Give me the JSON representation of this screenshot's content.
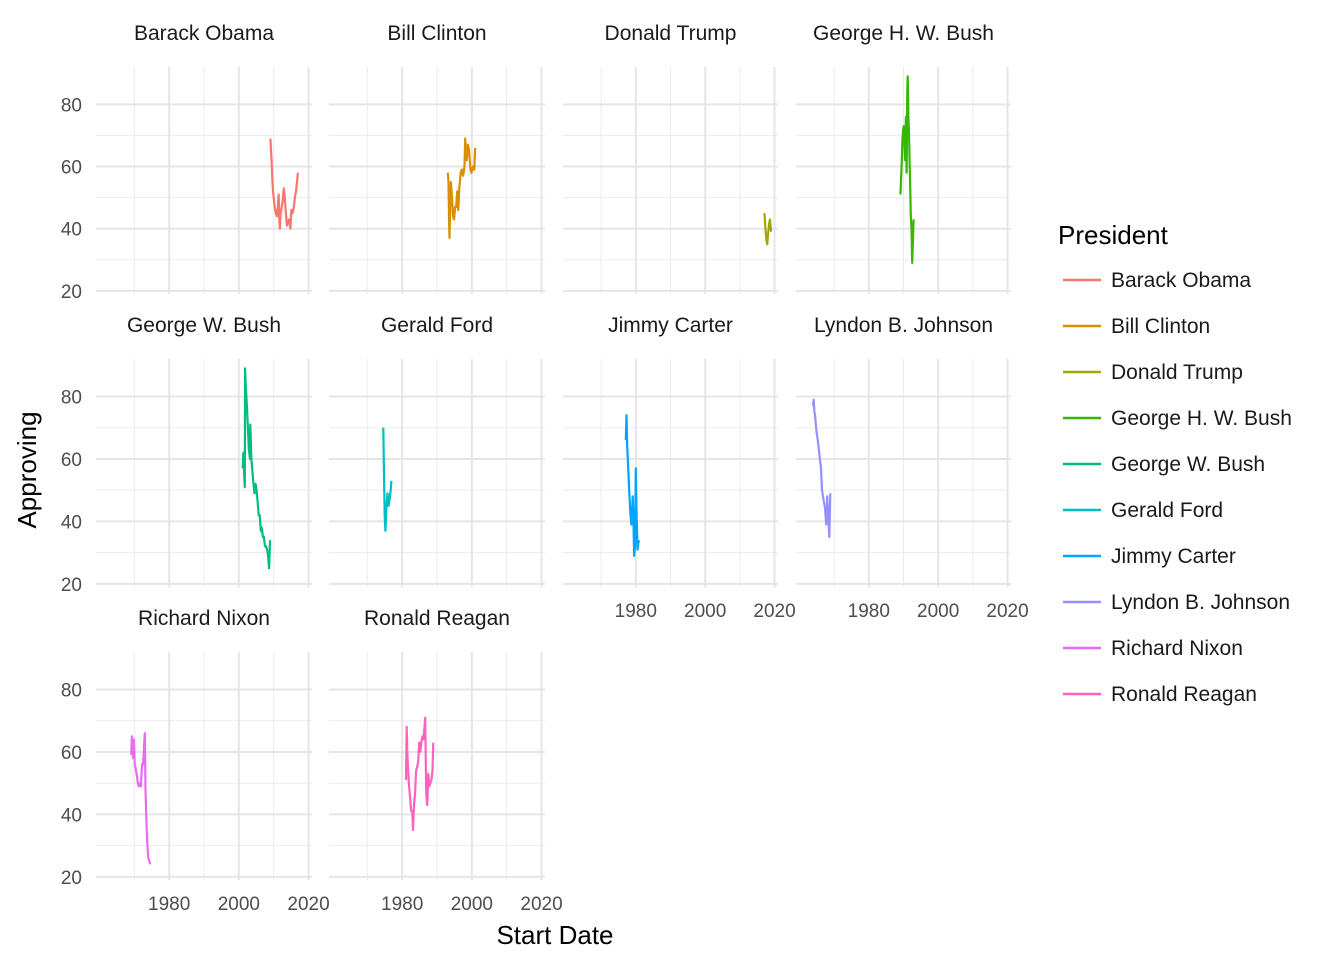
{
  "chart_data": {
    "type": "line",
    "facet": "wrap",
    "xlabel": "Start Date",
    "ylabel": "Approving",
    "xlim": [
      1959,
      2021
    ],
    "ylim": [
      19,
      92
    ],
    "x_ticks": [
      1980,
      2000,
      2020
    ],
    "y_ticks": [
      20,
      40,
      60,
      80
    ],
    "grid": true,
    "legend": {
      "title": "President",
      "position": "right"
    },
    "series": [
      {
        "name": "Barack Obama",
        "color": "#F8766D",
        "points": [
          [
            2009.05,
            69
          ],
          [
            2009.2,
            66
          ],
          [
            2009.4,
            62
          ],
          [
            2009.6,
            56
          ],
          [
            2009.8,
            52
          ],
          [
            2010.0,
            50
          ],
          [
            2010.3,
            47
          ],
          [
            2010.6,
            45
          ],
          [
            2010.9,
            44
          ],
          [
            2011.2,
            47
          ],
          [
            2011.4,
            51
          ],
          [
            2011.6,
            43
          ],
          [
            2011.8,
            40
          ],
          [
            2012.0,
            45
          ],
          [
            2012.3,
            47
          ],
          [
            2012.6,
            49
          ],
          [
            2012.9,
            53
          ],
          [
            2013.1,
            51
          ],
          [
            2013.5,
            45
          ],
          [
            2013.8,
            41
          ],
          [
            2014.1,
            42
          ],
          [
            2014.4,
            43
          ],
          [
            2014.8,
            40
          ],
          [
            2015.1,
            46
          ],
          [
            2015.4,
            45
          ],
          [
            2015.8,
            47
          ],
          [
            2016.1,
            50
          ],
          [
            2016.4,
            52
          ],
          [
            2016.7,
            55
          ],
          [
            2016.95,
            58
          ]
        ]
      },
      {
        "name": "Bill Clinton",
        "color": "#D89000",
        "points": [
          [
            1993.1,
            58
          ],
          [
            1993.3,
            55
          ],
          [
            1993.45,
            44
          ],
          [
            1993.6,
            37
          ],
          [
            1993.8,
            48
          ],
          [
            1994.0,
            55
          ],
          [
            1994.3,
            50
          ],
          [
            1994.6,
            44
          ],
          [
            1994.9,
            43
          ],
          [
            1995.2,
            47
          ],
          [
            1995.5,
            47
          ],
          [
            1995.8,
            52
          ],
          [
            1996.1,
            46
          ],
          [
            1996.4,
            53
          ],
          [
            1996.8,
            58
          ],
          [
            1997.1,
            59
          ],
          [
            1997.5,
            57
          ],
          [
            1997.9,
            60
          ],
          [
            1998.1,
            69
          ],
          [
            1998.5,
            62
          ],
          [
            1998.9,
            67
          ],
          [
            1999.2,
            65
          ],
          [
            1999.6,
            59
          ],
          [
            1999.9,
            58
          ],
          [
            2000.3,
            60
          ],
          [
            2000.7,
            59
          ],
          [
            2000.95,
            66
          ]
        ]
      },
      {
        "name": "Donald Trump",
        "color": "#A3A500",
        "points": [
          [
            2017.1,
            45
          ],
          [
            2017.3,
            41
          ],
          [
            2017.5,
            38
          ],
          [
            2017.7,
            36
          ],
          [
            2017.9,
            35
          ],
          [
            2018.1,
            38
          ],
          [
            2018.3,
            40
          ],
          [
            2018.5,
            42
          ],
          [
            2018.7,
            43
          ],
          [
            2018.85,
            41
          ],
          [
            2019.0,
            39
          ]
        ]
      },
      {
        "name": "George H. W. Bush",
        "color": "#39B600",
        "points": [
          [
            1989.1,
            51
          ],
          [
            1989.3,
            56
          ],
          [
            1989.5,
            62
          ],
          [
            1989.7,
            69
          ],
          [
            1989.9,
            72
          ],
          [
            1990.1,
            73
          ],
          [
            1990.3,
            67
          ],
          [
            1990.5,
            62
          ],
          [
            1990.7,
            76
          ],
          [
            1990.9,
            58
          ],
          [
            1991.1,
            84
          ],
          [
            1991.2,
            89
          ],
          [
            1991.4,
            76
          ],
          [
            1991.6,
            71
          ],
          [
            1991.8,
            60
          ],
          [
            1991.9,
            55
          ],
          [
            1992.1,
            44
          ],
          [
            1992.3,
            40
          ],
          [
            1992.5,
            29
          ],
          [
            1992.7,
            36
          ],
          [
            1992.9,
            43
          ]
        ]
      },
      {
        "name": "George W. Bush",
        "color": "#00BF7D",
        "points": [
          [
            2001.1,
            57
          ],
          [
            2001.3,
            62
          ],
          [
            2001.5,
            55
          ],
          [
            2001.7,
            51
          ],
          [
            2001.8,
            89
          ],
          [
            2002.0,
            83
          ],
          [
            2002.3,
            77
          ],
          [
            2002.6,
            70
          ],
          [
            2002.9,
            63
          ],
          [
            2003.2,
            60
          ],
          [
            2003.3,
            71
          ],
          [
            2003.6,
            60
          ],
          [
            2003.9,
            56
          ],
          [
            2004.2,
            52
          ],
          [
            2004.5,
            49
          ],
          [
            2004.8,
            52
          ],
          [
            2005.1,
            50
          ],
          [
            2005.4,
            46
          ],
          [
            2005.7,
            42
          ],
          [
            2006.0,
            42
          ],
          [
            2006.3,
            37
          ],
          [
            2006.6,
            38
          ],
          [
            2006.9,
            35
          ],
          [
            2007.2,
            35
          ],
          [
            2007.5,
            32
          ],
          [
            2007.8,
            32
          ],
          [
            2008.1,
            31
          ],
          [
            2008.4,
            29
          ],
          [
            2008.7,
            25
          ],
          [
            2008.95,
            34
          ]
        ]
      },
      {
        "name": "Gerald Ford",
        "color": "#00BFC4",
        "points": [
          [
            1974.6,
            70
          ],
          [
            1974.8,
            55
          ],
          [
            1975.0,
            42
          ],
          [
            1975.2,
            37
          ],
          [
            1975.5,
            45
          ],
          [
            1975.8,
            49
          ],
          [
            1976.1,
            45
          ],
          [
            1976.4,
            47
          ],
          [
            1976.7,
            50
          ],
          [
            1976.9,
            53
          ]
        ]
      },
      {
        "name": "Jimmy Carter",
        "color": "#00A5FF",
        "points": [
          [
            1977.1,
            66
          ],
          [
            1977.3,
            74
          ],
          [
            1977.5,
            64
          ],
          [
            1977.7,
            60
          ],
          [
            1977.9,
            55
          ],
          [
            1978.1,
            50
          ],
          [
            1978.4,
            43
          ],
          [
            1978.7,
            39
          ],
          [
            1978.9,
            42
          ],
          [
            1979.1,
            48
          ],
          [
            1979.3,
            42
          ],
          [
            1979.5,
            29
          ],
          [
            1979.8,
            32
          ],
          [
            1980.0,
            57
          ],
          [
            1980.2,
            43
          ],
          [
            1980.5,
            31
          ],
          [
            1980.7,
            33
          ],
          [
            1980.9,
            34
          ]
        ]
      },
      {
        "name": "Lyndon B. Johnson",
        "color": "#9590FF",
        "points": [
          [
            1963.9,
            77
          ],
          [
            1964.1,
            79
          ],
          [
            1964.3,
            75
          ],
          [
            1964.5,
            74
          ],
          [
            1964.7,
            71
          ],
          [
            1965.0,
            68
          ],
          [
            1965.3,
            66
          ],
          [
            1965.6,
            63
          ],
          [
            1965.9,
            60
          ],
          [
            1966.2,
            57
          ],
          [
            1966.5,
            50
          ],
          [
            1966.8,
            48
          ],
          [
            1967.1,
            46
          ],
          [
            1967.4,
            44
          ],
          [
            1967.7,
            39
          ],
          [
            1968.0,
            48
          ],
          [
            1968.3,
            42
          ],
          [
            1968.6,
            35
          ],
          [
            1968.9,
            49
          ]
        ]
      },
      {
        "name": "Richard Nixon",
        "color": "#E76BF3",
        "points": [
          [
            1969.1,
            59
          ],
          [
            1969.3,
            65
          ],
          [
            1969.5,
            61
          ],
          [
            1969.7,
            58
          ],
          [
            1969.9,
            64
          ],
          [
            1970.1,
            56
          ],
          [
            1970.3,
            55
          ],
          [
            1970.5,
            54
          ],
          [
            1970.8,
            52
          ],
          [
            1971.0,
            50
          ],
          [
            1971.3,
            49
          ],
          [
            1971.6,
            50
          ],
          [
            1971.9,
            49
          ],
          [
            1972.2,
            56
          ],
          [
            1972.5,
            56
          ],
          [
            1972.8,
            62
          ],
          [
            1973.0,
            66
          ],
          [
            1973.2,
            48
          ],
          [
            1973.4,
            40
          ],
          [
            1973.7,
            31
          ],
          [
            1974.0,
            26
          ],
          [
            1974.3,
            25
          ],
          [
            1974.6,
            24
          ]
        ]
      },
      {
        "name": "Ronald Reagan",
        "color": "#FF62BC",
        "points": [
          [
            1981.1,
            51
          ],
          [
            1981.3,
            68
          ],
          [
            1981.5,
            59
          ],
          [
            1981.8,
            53
          ],
          [
            1982.0,
            49
          ],
          [
            1982.3,
            45
          ],
          [
            1982.6,
            41
          ],
          [
            1982.9,
            41
          ],
          [
            1983.1,
            35
          ],
          [
            1983.4,
            43
          ],
          [
            1983.7,
            47
          ],
          [
            1984.0,
            54
          ],
          [
            1984.3,
            55
          ],
          [
            1984.6,
            57
          ],
          [
            1984.9,
            63
          ],
          [
            1985.2,
            60
          ],
          [
            1985.5,
            63
          ],
          [
            1985.8,
            65
          ],
          [
            1986.1,
            64
          ],
          [
            1986.4,
            68
          ],
          [
            1986.6,
            71
          ],
          [
            1986.9,
            47
          ],
          [
            1987.2,
            43
          ],
          [
            1987.5,
            53
          ],
          [
            1987.8,
            49
          ],
          [
            1988.1,
            50
          ],
          [
            1988.4,
            51
          ],
          [
            1988.7,
            54
          ],
          [
            1988.95,
            63
          ]
        ]
      }
    ]
  }
}
